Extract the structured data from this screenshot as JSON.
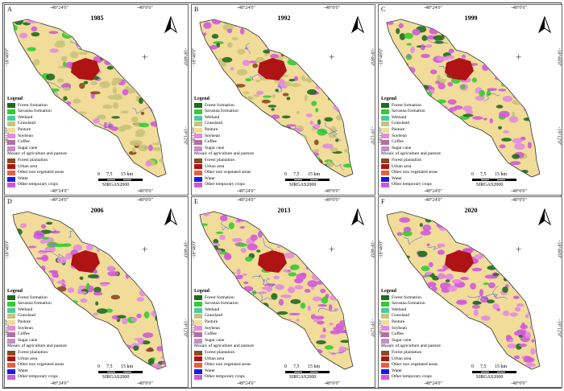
{
  "panels": [
    {
      "letter": "A",
      "year": "1985",
      "cross": "+"
    },
    {
      "letter": "B",
      "year": "1992",
      "cross": "+"
    },
    {
      "letter": "C",
      "year": "1999",
      "cross": "+"
    },
    {
      "letter": "D",
      "year": "2006",
      "cross": "+"
    },
    {
      "letter": "E",
      "year": "2013",
      "cross": "+"
    },
    {
      "letter": "F",
      "year": "2020",
      "cross": "+"
    }
  ],
  "coords": {
    "top_left": "-48°24'0\"",
    "top_right": "-48°0'0\"",
    "left_upper": "-18°48'0\"",
    "left_lower": "-19°12'0\"",
    "right_upper": "-18°48'0\"",
    "right_lower": "-19°12'0\""
  },
  "legend": {
    "title": "Legend",
    "items": [
      {
        "label": "Forest formation",
        "color": "#1f6b1f"
      },
      {
        "label": "Savanna formation",
        "color": "#33cc33"
      },
      {
        "label": "Wetland",
        "color": "#4ec7a0"
      },
      {
        "label": "Grassland",
        "color": "#c9c27a"
      },
      {
        "label": "Pasture",
        "color": "#f1dc9a"
      },
      {
        "label": "Soybean",
        "color": "#e38be0"
      },
      {
        "label": "Coffee",
        "color": "#b46f9c"
      },
      {
        "label": "Sugar cane",
        "color": "#c38fc8"
      },
      {
        "label": "Mosaic of agriculture and pasture",
        "color": "#ffffff"
      },
      {
        "label": "Forest plantation",
        "color": "#8a4a22"
      },
      {
        "label": "Urban area",
        "color": "#b01313"
      },
      {
        "label": "Other non vegetated areas",
        "color": "#e8603c"
      },
      {
        "label": "Water",
        "color": "#1a1ae6"
      },
      {
        "label": "Other temporary crops",
        "color": "#d05ad8"
      }
    ]
  },
  "scale": {
    "t0": "0",
    "t1": "7,5",
    "t2": "15 km",
    "reference": "SIRGAS2000"
  },
  "colors": {
    "pasture": "#f1dc9a",
    "forest": "#1f6b1f",
    "savanna": "#33cc33",
    "urban": "#b01313",
    "soy": "#e38be0",
    "crops": "#d05ad8",
    "plantation": "#8a4a22",
    "river": "#2e5cc8",
    "grass": "#c9c27a"
  },
  "panel_agri_share": [
    0.15,
    0.3,
    0.6,
    0.7,
    0.75,
    0.8
  ]
}
